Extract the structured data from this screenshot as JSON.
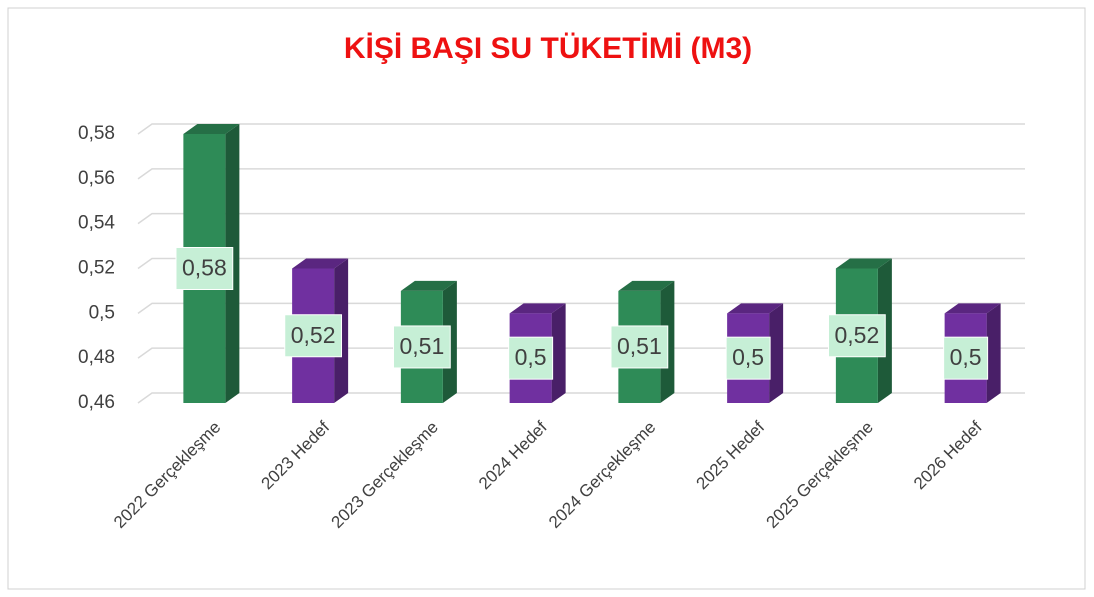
{
  "chart_data": {
    "type": "bar3d",
    "title": "KİŞİ BAŞI SU TÜKETİMİ (M3)",
    "categories": [
      "2022 Gerçekleşme",
      "2023 Hedef",
      "2023 Gerçekleşme",
      "2024 Hedef",
      "2024 Gerçekleşme",
      "2025 Hedef",
      "2025 Gerçekleşme",
      "2026 Hedef"
    ],
    "values": [
      0.58,
      0.52,
      0.51,
      0.5,
      0.51,
      0.5,
      0.52,
      0.5
    ],
    "value_labels": [
      "0,58",
      "0,52",
      "0,51",
      "0,5",
      "0,51",
      "0,5",
      "0,52",
      "0,5"
    ],
    "colors": [
      "#2e8b57",
      "#7030a0",
      "#2e8b57",
      "#7030a0",
      "#2e8b57",
      "#7030a0",
      "#2e8b57",
      "#7030a0"
    ],
    "ylim": [
      0.46,
      0.58
    ],
    "yticks": [
      {
        "value": 0.46,
        "label": "0,46"
      },
      {
        "value": 0.48,
        "label": "0,48"
      },
      {
        "value": 0.5,
        "label": "0,5"
      },
      {
        "value": 0.52,
        "label": "0,52"
      },
      {
        "value": 0.54,
        "label": "0,54"
      },
      {
        "value": 0.56,
        "label": "0,56"
      },
      {
        "value": 0.58,
        "label": "0,58"
      }
    ],
    "grid": true
  }
}
